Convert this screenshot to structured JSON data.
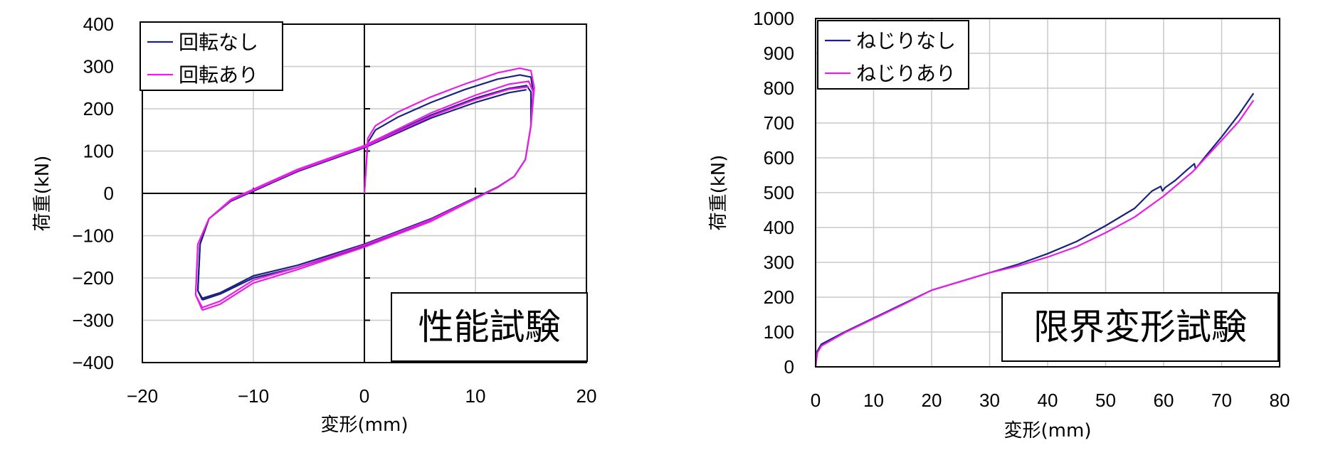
{
  "chart_data": [
    {
      "type": "line",
      "annotation": "性能試験",
      "xlabel": "変形(mm)",
      "ylabel": "荷重(kN)",
      "xlim": [
        -20,
        20
      ],
      "ylim": [
        -400,
        400
      ],
      "xticks": [
        -20,
        -10,
        0,
        10,
        20
      ],
      "yticks": [
        400,
        300,
        200,
        100,
        0,
        -100,
        -200,
        -300,
        -400
      ],
      "grid": true,
      "zero_axes": true,
      "legend_position": "top-left",
      "series": [
        {
          "name": "回転なし",
          "color": "#1a237e",
          "loops": [
            [
              [
                0,
                0
              ],
              [
                0.3,
                120
              ],
              [
                1,
                150
              ],
              [
                3,
                180
              ],
              [
                6,
                215
              ],
              [
                9,
                245
              ],
              [
                12,
                270
              ],
              [
                14,
                280
              ],
              [
                15,
                275
              ],
              [
                15.2,
                240
              ],
              [
                15,
                160
              ],
              [
                14.5,
                80
              ],
              [
                13.5,
                40
              ],
              [
                12,
                15
              ],
              [
                6,
                -60
              ],
              [
                0,
                -120
              ],
              [
                -6,
                -170
              ],
              [
                -10,
                -195
              ],
              [
                -13,
                -235
              ],
              [
                -14.6,
                -248
              ],
              [
                -15,
                -230
              ],
              [
                -14.8,
                -120
              ],
              [
                -14,
                -60
              ],
              [
                -12,
                -15
              ],
              [
                -6,
                55
              ],
              [
                0,
                110
              ],
              [
                6,
                185
              ],
              [
                10,
                225
              ],
              [
                13,
                248
              ],
              [
                14.6,
                255
              ],
              [
                15,
                240
              ],
              [
                15,
                160
              ],
              [
                14.5,
                80
              ],
              [
                13.5,
                40
              ],
              [
                12,
                15
              ],
              [
                6,
                -65
              ],
              [
                0,
                -125
              ],
              [
                -6,
                -175
              ],
              [
                -10,
                -200
              ],
              [
                -13,
                -238
              ],
              [
                -14.6,
                -252
              ]
            ],
            [
              [
                -14.6,
                -252
              ],
              [
                -15,
                -230
              ],
              [
                -14.8,
                -120
              ],
              [
                -14,
                -60
              ],
              [
                -12,
                -18
              ],
              [
                -6,
                52
              ],
              [
                0,
                108
              ],
              [
                6,
                178
              ],
              [
                10,
                215
              ],
              [
                13,
                238
              ],
              [
                14.6,
                245
              ]
            ]
          ]
        },
        {
          "name": "回転あり",
          "color": "#e81ee8",
          "loops": [
            [
              [
                0,
                0
              ],
              [
                0.3,
                130
              ],
              [
                1,
                160
              ],
              [
                3,
                192
              ],
              [
                6,
                228
              ],
              [
                9,
                258
              ],
              [
                12,
                285
              ],
              [
                14,
                296
              ],
              [
                15,
                290
              ],
              [
                15.3,
                250
              ],
              [
                15,
                160
              ],
              [
                14.5,
                80
              ],
              [
                13.5,
                40
              ],
              [
                12,
                14
              ],
              [
                6,
                -62
              ],
              [
                0,
                -122
              ],
              [
                -6,
                -175
              ],
              [
                -10,
                -205
              ],
              [
                -13,
                -255
              ],
              [
                -14.6,
                -270
              ],
              [
                -15.2,
                -240
              ],
              [
                -15,
                -120
              ],
              [
                -14,
                -60
              ],
              [
                -12,
                -14
              ],
              [
                -6,
                57
              ],
              [
                0,
                113
              ],
              [
                6,
                190
              ],
              [
                10,
                232
              ],
              [
                13,
                258
              ],
              [
                14.8,
                265
              ],
              [
                15.2,
                240
              ],
              [
                15,
                160
              ],
              [
                14.5,
                80
              ],
              [
                13.5,
                40
              ],
              [
                12,
                14
              ],
              [
                6,
                -66
              ],
              [
                0,
                -127
              ],
              [
                -6,
                -180
              ],
              [
                -10,
                -212
              ],
              [
                -13,
                -262
              ],
              [
                -14.6,
                -276
              ]
            ],
            [
              [
                -14.6,
                -276
              ],
              [
                -15.2,
                -240
              ],
              [
                -15,
                -120
              ],
              [
                -14,
                -60
              ],
              [
                -12,
                -16
              ],
              [
                -6,
                54
              ],
              [
                0,
                110
              ],
              [
                6,
                182
              ],
              [
                10,
                222
              ],
              [
                13,
                246
              ],
              [
                14.8,
                252
              ]
            ]
          ]
        }
      ]
    },
    {
      "type": "line",
      "annotation": "限界変形試験",
      "xlabel": "変形(mm)",
      "ylabel": "荷重(kN)",
      "xlim": [
        0,
        80
      ],
      "ylim": [
        0,
        1000
      ],
      "xticks": [
        0,
        10,
        20,
        30,
        40,
        50,
        60,
        70,
        80
      ],
      "yticks": [
        1000,
        900,
        800,
        700,
        600,
        500,
        400,
        300,
        200,
        100,
        0
      ],
      "grid": true,
      "legend_position": "top-left",
      "series": [
        {
          "name": "ねじりなし",
          "color": "#1a237e",
          "points": [
            [
              0,
              0
            ],
            [
              0.3,
              45
            ],
            [
              1,
              65
            ],
            [
              5,
              100
            ],
            [
              10,
              140
            ],
            [
              15,
              180
            ],
            [
              20,
              220
            ],
            [
              25,
              245
            ],
            [
              30,
              270
            ],
            [
              35,
              295
            ],
            [
              40,
              325
            ],
            [
              45,
              360
            ],
            [
              50,
              405
            ],
            [
              55,
              455
            ],
            [
              58,
              505
            ],
            [
              59.5,
              518
            ],
            [
              59.8,
              505
            ],
            [
              60.3,
              515
            ],
            [
              62,
              535
            ],
            [
              64,
              565
            ],
            [
              65.3,
              583
            ],
            [
              65.5,
              568
            ],
            [
              67,
              600
            ],
            [
              70,
              660
            ],
            [
              73,
              725
            ],
            [
              75.5,
              785
            ]
          ]
        },
        {
          "name": "ねじりあり",
          "color": "#e81ee8",
          "points": [
            [
              0,
              0
            ],
            [
              0.3,
              40
            ],
            [
              1,
              60
            ],
            [
              5,
              98
            ],
            [
              10,
              138
            ],
            [
              15,
              178
            ],
            [
              20,
              220
            ],
            [
              25,
              245
            ],
            [
              30,
              270
            ],
            [
              35,
              290
            ],
            [
              40,
              315
            ],
            [
              45,
              345
            ],
            [
              50,
              385
            ],
            [
              55,
              430
            ],
            [
              60,
              490
            ],
            [
              65,
              560
            ],
            [
              70,
              650
            ],
            [
              73,
              705
            ],
            [
              75.5,
              765
            ]
          ]
        }
      ]
    }
  ]
}
